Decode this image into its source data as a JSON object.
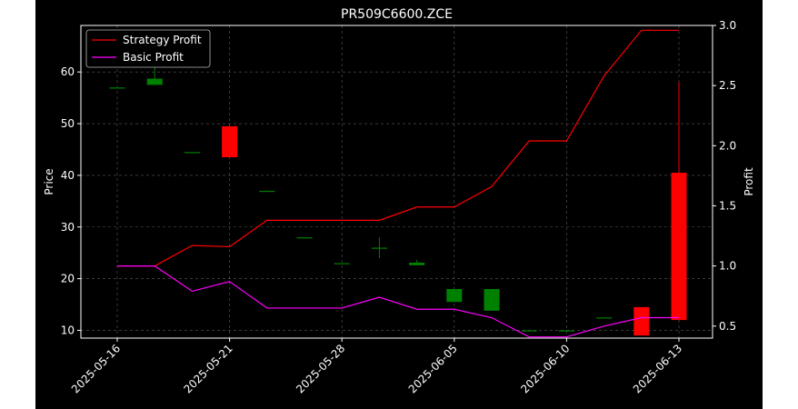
{
  "chart_data": {
    "type": "candlestick+line",
    "title": "PR509C6600.ZCE",
    "ylabel_left": "Price",
    "ylabel_right": "Profit",
    "ylim_left": [
      8.5,
      69
    ],
    "ylim_right": [
      0.4,
      3.0
    ],
    "left_ticks": [
      10,
      20,
      30,
      40,
      50,
      60
    ],
    "right_ticks": [
      0.5,
      1.0,
      1.5,
      2.0,
      2.5,
      3.0
    ],
    "x_tick_labels": [
      {
        "label": "2025-05-16",
        "index": 0
      },
      {
        "label": "2025-05-21",
        "index": 3
      },
      {
        "label": "2025-05-28",
        "index": 6
      },
      {
        "label": "2025-06-05",
        "index": 9
      },
      {
        "label": "2025-06-10",
        "index": 12
      },
      {
        "label": "2025-06-13",
        "index": 15
      }
    ],
    "grid": true,
    "legend_position": "top-left",
    "colors": {
      "background": "#000000",
      "up": "#008000",
      "down": "#ff0000",
      "strategy": "#ff0000",
      "basic": "#ff00ff",
      "text": "#ffffff",
      "grid": "#808080"
    },
    "candles": [
      {
        "i": 0,
        "open": 57.0,
        "close": 57.0,
        "high": 57.0,
        "low": 57.0
      },
      {
        "i": 1,
        "open": 57.5,
        "close": 58.7,
        "high": 61.0,
        "low": 57.5
      },
      {
        "i": 2,
        "open": 44.5,
        "close": 44.5,
        "high": 44.5,
        "low": 44.5
      },
      {
        "i": 3,
        "open": 49.5,
        "close": 43.5,
        "high": 49.5,
        "low": 43.5
      },
      {
        "i": 4,
        "open": 37.0,
        "close": 37.0,
        "high": 37.0,
        "low": 37.0
      },
      {
        "i": 5,
        "open": 28.0,
        "close": 28.0,
        "high": 28.0,
        "low": 28.0
      },
      {
        "i": 6,
        "open": 23.0,
        "close": 23.0,
        "high": 23.0,
        "low": 23.0
      },
      {
        "i": 7,
        "open": 26.0,
        "close": 26.0,
        "high": 28.0,
        "low": 24.0
      },
      {
        "i": 8,
        "open": 22.6,
        "close": 23.1,
        "high": 23.6,
        "low": 22.6
      },
      {
        "i": 9,
        "open": 15.5,
        "close": 18.0,
        "high": 18.0,
        "low": 15.5
      },
      {
        "i": 10,
        "open": 13.8,
        "close": 18.0,
        "high": 18.0,
        "low": 13.8
      },
      {
        "i": 11,
        "open": 10.0,
        "close": 10.0,
        "high": 10.0,
        "low": 10.0
      },
      {
        "i": 12,
        "open": 10.0,
        "close": 10.0,
        "high": 10.0,
        "low": 10.0
      },
      {
        "i": 13,
        "open": 12.5,
        "close": 12.5,
        "high": 12.5,
        "low": 12.5
      },
      {
        "i": 14,
        "open": 14.5,
        "close": 9.0,
        "high": 14.5,
        "low": 9.0
      },
      {
        "i": 15,
        "open": 40.5,
        "close": 12.0,
        "high": 58.0,
        "low": 12.0
      }
    ],
    "series": [
      {
        "name": "Strategy Profit",
        "color": "#ff0000",
        "x": [
          0,
          1,
          2,
          3,
          4,
          5,
          6,
          7,
          8,
          9,
          10,
          11,
          12,
          13,
          14,
          15
        ],
        "values": [
          1.0,
          1.0,
          1.17,
          1.16,
          1.38,
          1.38,
          1.38,
          1.38,
          1.49,
          1.49,
          1.66,
          2.04,
          2.04,
          2.58,
          2.96,
          2.96
        ]
      },
      {
        "name": "Basic Profit",
        "color": "#ff00ff",
        "x": [
          0,
          1,
          2,
          3,
          4,
          5,
          6,
          7,
          8,
          9,
          10,
          11,
          12,
          13,
          14,
          15
        ],
        "values": [
          1.0,
          1.0,
          0.79,
          0.87,
          0.65,
          0.65,
          0.65,
          0.74,
          0.64,
          0.64,
          0.57,
          0.41,
          0.41,
          0.5,
          0.57,
          0.57
        ]
      }
    ]
  }
}
